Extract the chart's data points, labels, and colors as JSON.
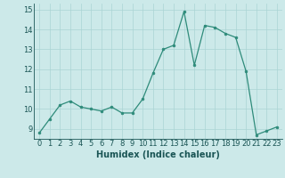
{
  "x": [
    0,
    1,
    2,
    3,
    4,
    5,
    6,
    7,
    8,
    9,
    10,
    11,
    12,
    13,
    14,
    15,
    16,
    17,
    18,
    19,
    20,
    21,
    22,
    23
  ],
  "y": [
    8.8,
    9.5,
    10.2,
    10.4,
    10.1,
    10.0,
    9.9,
    10.1,
    9.8,
    9.8,
    10.5,
    11.8,
    13.0,
    13.2,
    14.9,
    12.2,
    14.2,
    14.1,
    13.8,
    13.6,
    11.9,
    8.7,
    8.9,
    9.1
  ],
  "xlabel": "Humidex (Indice chaleur)",
  "xlim": [
    -0.5,
    23.5
  ],
  "ylim": [
    8.5,
    15.3
  ],
  "yticks": [
    9,
    10,
    11,
    12,
    13,
    14,
    15
  ],
  "xticks": [
    0,
    1,
    2,
    3,
    4,
    5,
    6,
    7,
    8,
    9,
    10,
    11,
    12,
    13,
    14,
    15,
    16,
    17,
    18,
    19,
    20,
    21,
    22,
    23
  ],
  "line_color": "#2e8b7a",
  "marker_color": "#2e8b7a",
  "bg_color": "#cce9e9",
  "grid_color": "#aad4d4",
  "axis_label_color": "#1a5555",
  "tick_color": "#1a5555",
  "xlabel_fontsize": 7.0,
  "tick_fontsize": 6.0
}
